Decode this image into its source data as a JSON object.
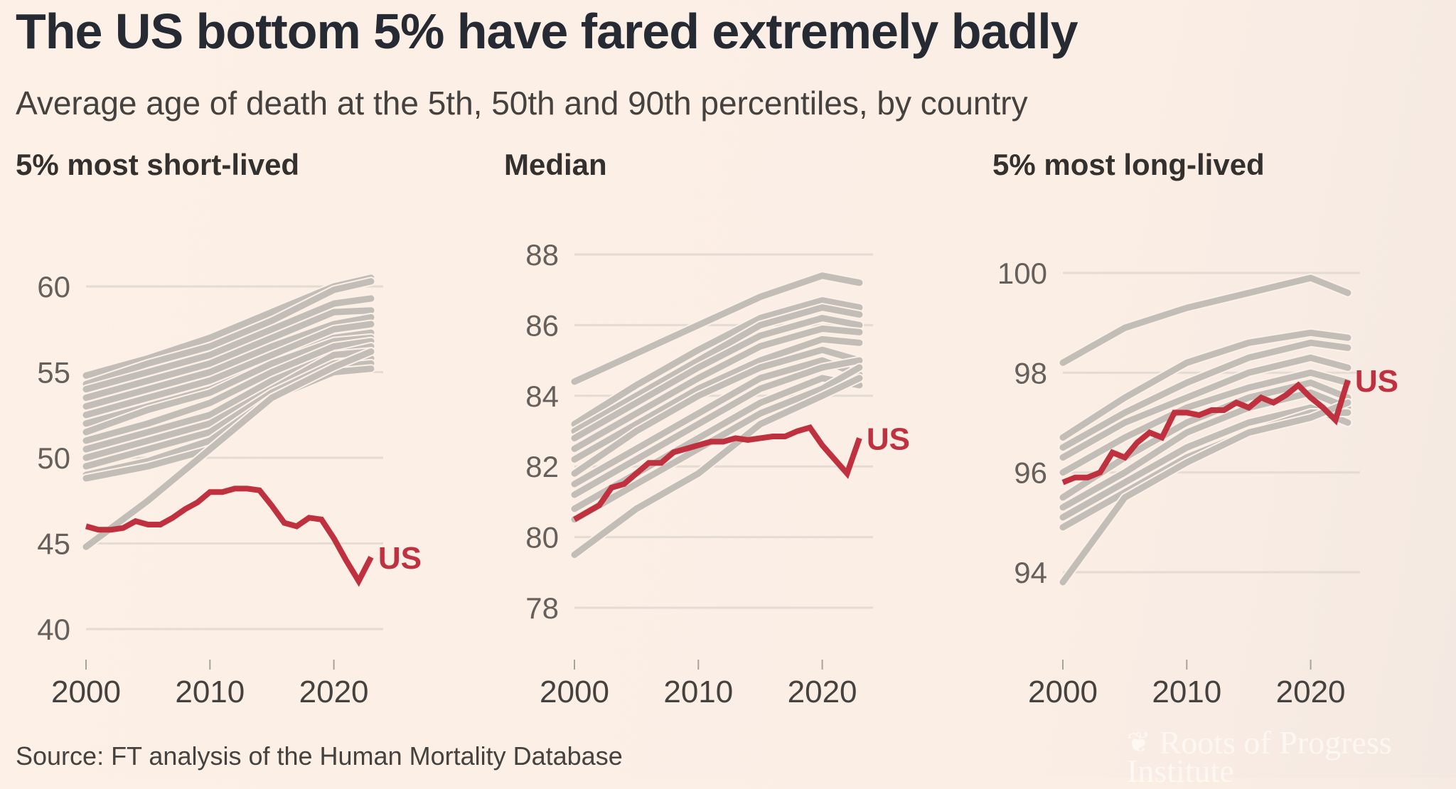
{
  "title": "The US bottom 5% have fared extremely badly",
  "subtitle": "Average age of death at the 5th, 50th and 90th percentiles, by country",
  "source": "Source: FT analysis of the Human Mortality Database",
  "logo": {
    "text": "Roots of Progress Institute"
  },
  "colors": {
    "us": "#c0313f",
    "other": "#c3bdb8",
    "grid": "#e3dbd4",
    "background": "#fcf0e7"
  },
  "chart_data": [
    {
      "type": "line",
      "title": "5% most short-lived",
      "xlabel": "",
      "ylabel": "",
      "xlim": [
        2000,
        2024
      ],
      "ylim": [
        40,
        60
      ],
      "yticks": [
        60,
        55,
        50,
        45,
        40
      ],
      "xticks": [
        2000,
        2010,
        2020
      ],
      "grid": true,
      "highlight": {
        "name": "US",
        "x": [
          2000,
          2001,
          2002,
          2003,
          2004,
          2005,
          2006,
          2007,
          2008,
          2009,
          2010,
          2011,
          2012,
          2013,
          2014,
          2015,
          2016,
          2017,
          2018,
          2019,
          2020,
          2021,
          2022,
          2023
        ],
        "values": [
          46,
          45.8,
          45.8,
          45.9,
          46.3,
          46.1,
          46.1,
          46.5,
          47,
          47.4,
          48,
          48,
          48.2,
          48.2,
          48.1,
          47.2,
          46.2,
          46,
          46.5,
          46.4,
          45.3,
          44,
          42.8,
          44.2
        ]
      },
      "other_countries": {
        "x": [
          2000,
          2005,
          2010,
          2015,
          2020,
          2023
        ],
        "series": [
          [
            54.8,
            55.8,
            57,
            58.5,
            60,
            60.5
          ],
          [
            54.3,
            55.5,
            56.5,
            58,
            59.8,
            60.3
          ],
          [
            54,
            55,
            56,
            57.5,
            59,
            59.3
          ],
          [
            53.5,
            54.5,
            55.5,
            57,
            58.5,
            58.6
          ],
          [
            53,
            54,
            55,
            56.5,
            57.8,
            58.2
          ],
          [
            52.5,
            53.5,
            54.5,
            56,
            57.5,
            57.8
          ],
          [
            52,
            53,
            54,
            55.5,
            57,
            57.3
          ],
          [
            51.5,
            52.8,
            53.8,
            55.5,
            56.8,
            57
          ],
          [
            51,
            52,
            53.2,
            55,
            56.5,
            56.8
          ],
          [
            50.5,
            51.5,
            52.5,
            54.5,
            56,
            56.5
          ],
          [
            50,
            51,
            52,
            54,
            56,
            56.2
          ],
          [
            49.5,
            50.5,
            51.5,
            53.8,
            55.5,
            55.8
          ],
          [
            49,
            49.8,
            51,
            53.5,
            55.3,
            55.5
          ],
          [
            48.8,
            49.5,
            50.5,
            53.5,
            55,
            55.2
          ],
          [
            44.8,
            47.5,
            50.5,
            53.5,
            55.3,
            56.2
          ]
        ]
      }
    },
    {
      "type": "line",
      "title": "Median",
      "xlabel": "",
      "ylabel": "",
      "xlim": [
        2000,
        2024
      ],
      "ylim": [
        78,
        88
      ],
      "yticks": [
        88,
        86,
        84,
        82,
        80,
        78
      ],
      "xticks": [
        2000,
        2010,
        2020
      ],
      "grid": true,
      "highlight": {
        "name": "US",
        "x": [
          2000,
          2001,
          2002,
          2003,
          2004,
          2005,
          2006,
          2007,
          2008,
          2009,
          2010,
          2011,
          2012,
          2013,
          2014,
          2015,
          2016,
          2017,
          2018,
          2019,
          2020,
          2021,
          2022,
          2023
        ],
        "values": [
          80.5,
          80.7,
          80.9,
          81.4,
          81.5,
          81.8,
          82.1,
          82.1,
          82.4,
          82.5,
          82.6,
          82.7,
          82.7,
          82.8,
          82.75,
          82.8,
          82.85,
          82.85,
          83,
          83.1,
          82.6,
          82.2,
          81.8,
          82.8
        ]
      },
      "other_countries": {
        "x": [
          2000,
          2005,
          2010,
          2015,
          2020,
          2023
        ],
        "series": [
          [
            84.4,
            85.2,
            86,
            86.8,
            87.4,
            87.2
          ],
          [
            83.2,
            84.3,
            85.3,
            86.2,
            86.7,
            86.5
          ],
          [
            83,
            84,
            85,
            86,
            86.5,
            86.3
          ],
          [
            82.8,
            83.8,
            84.8,
            85.7,
            86.2,
            86
          ],
          [
            82.5,
            83.5,
            84.5,
            85.4,
            85.9,
            85.8
          ],
          [
            82.2,
            83.2,
            84.2,
            85,
            85.6,
            85.5
          ],
          [
            81.8,
            83,
            84,
            84.8,
            85.3,
            85
          ],
          [
            81.5,
            82.5,
            83.5,
            84.5,
            85,
            84.6
          ],
          [
            81.2,
            82.2,
            83.2,
            84.2,
            84.8,
            85
          ],
          [
            80.8,
            81.8,
            82.8,
            83.8,
            84.5,
            84.3
          ],
          [
            80.5,
            81.5,
            82.5,
            83.5,
            84.2,
            84.8
          ],
          [
            79.5,
            80.8,
            81.8,
            83.2,
            84,
            84.5
          ]
        ]
      }
    },
    {
      "type": "line",
      "title": "5% most long-lived",
      "xlabel": "",
      "ylabel": "",
      "xlim": [
        2000,
        2024
      ],
      "ylim": [
        93,
        100
      ],
      "yticks": [
        100,
        98,
        96,
        94
      ],
      "xticks": [
        2000,
        2010,
        2020
      ],
      "grid": true,
      "highlight": {
        "name": "US",
        "x": [
          2000,
          2001,
          2002,
          2003,
          2004,
          2005,
          2006,
          2007,
          2008,
          2009,
          2010,
          2011,
          2012,
          2013,
          2014,
          2015,
          2016,
          2017,
          2018,
          2019,
          2020,
          2021,
          2022,
          2023
        ],
        "values": [
          95.8,
          95.9,
          95.9,
          96,
          96.4,
          96.3,
          96.6,
          96.8,
          96.7,
          97.2,
          97.2,
          97.15,
          97.25,
          97.25,
          97.4,
          97.3,
          97.5,
          97.4,
          97.55,
          97.75,
          97.5,
          97.3,
          97.05,
          97.85
        ]
      },
      "other_countries": {
        "x": [
          2000,
          2005,
          2010,
          2015,
          2020,
          2023
        ],
        "series": [
          [
            98.2,
            98.9,
            99.3,
            99.6,
            99.9,
            99.6
          ],
          [
            96.7,
            97.5,
            98.2,
            98.6,
            98.8,
            98.7
          ],
          [
            96.5,
            97.2,
            97.8,
            98.3,
            98.6,
            98.5
          ],
          [
            96.3,
            97,
            97.5,
            98,
            98.3,
            98.1
          ],
          [
            96,
            96.7,
            97.3,
            97.7,
            98,
            97.8
          ],
          [
            95.5,
            96.3,
            97,
            97.5,
            97.8,
            97.5
          ],
          [
            95.3,
            96,
            96.8,
            97.3,
            97.6,
            97.3
          ],
          [
            95.1,
            95.8,
            96.5,
            97,
            97.3,
            97
          ],
          [
            94.9,
            95.6,
            96.3,
            96.8,
            97.2,
            97.2
          ],
          [
            93.8,
            95.5,
            96.2,
            96.8,
            97.1,
            97.4
          ]
        ]
      }
    }
  ]
}
